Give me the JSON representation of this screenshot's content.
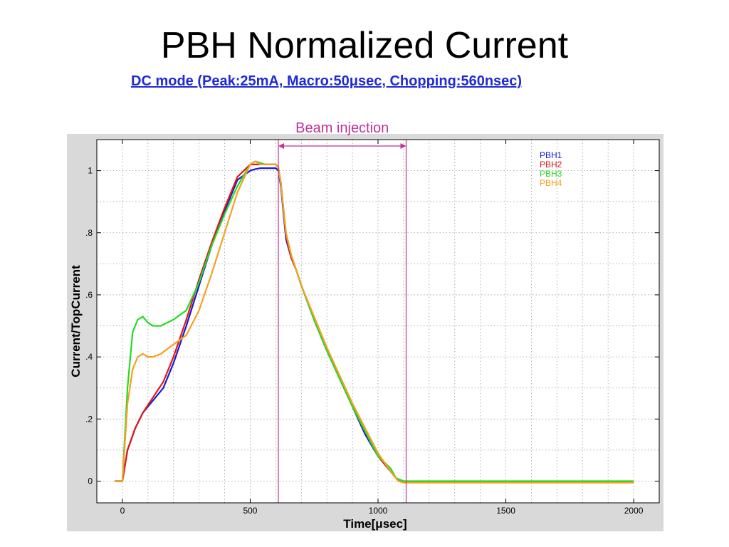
{
  "slide": {
    "title": "PBH Normalized Current",
    "subtitle": "DC mode (Peak:25mA, Macro:50μsec, Chopping:560nsec)"
  },
  "chart_data": {
    "type": "line",
    "title": "",
    "xlabel": "Time[μsec]",
    "ylabel": "Current/TopCurrent",
    "xlim": [
      -100,
      2100
    ],
    "ylim": [
      -0.07,
      1.1
    ],
    "grid": true,
    "legend_position": "top-right",
    "x_ticks": [
      {
        "value": 0,
        "label": "0"
      },
      {
        "value": 500,
        "label": "500"
      },
      {
        "value": 1000,
        "label": "1000"
      },
      {
        "value": 1500,
        "label": "1500"
      },
      {
        "value": 2000,
        "label": "2000"
      }
    ],
    "y_ticks": [
      {
        "value": 0,
        "label": "0"
      },
      {
        "value": 0.2,
        "label": ".2"
      },
      {
        "value": 0.4,
        "label": ".4"
      },
      {
        "value": 0.6,
        "label": ".6"
      },
      {
        "value": 0.8,
        "label": ".8"
      },
      {
        "value": 1,
        "label": "1"
      }
    ],
    "annotation": {
      "label": "Beam injection",
      "x_start": 610,
      "x_end": 1110,
      "color": "#c0329a"
    },
    "series": [
      {
        "name": "PBH1",
        "color": "#1a1ad6",
        "x": [
          -30,
          0,
          20,
          50,
          80,
          120,
          160,
          200,
          250,
          300,
          350,
          400,
          450,
          500,
          520,
          540,
          560,
          580,
          600,
          610,
          620,
          640,
          660,
          680,
          700,
          750,
          800,
          850,
          900,
          950,
          1000,
          1050,
          1080,
          1100,
          1200,
          1400,
          1600,
          1800,
          2000
        ],
        "y": [
          0,
          0,
          0.1,
          0.17,
          0.22,
          0.26,
          0.3,
          0.38,
          0.5,
          0.63,
          0.76,
          0.87,
          0.97,
          1.0,
          1.005,
          1.008,
          1.008,
          1.008,
          1.008,
          1.0,
          0.95,
          0.78,
          0.72,
          0.68,
          0.63,
          0.52,
          0.42,
          0.33,
          0.24,
          0.15,
          0.08,
          0.03,
          0.0,
          -0.003,
          -0.003,
          -0.003,
          -0.003,
          -0.003,
          -0.003
        ]
      },
      {
        "name": "PBH2",
        "color": "#e01818",
        "x": [
          -30,
          0,
          20,
          50,
          80,
          120,
          160,
          200,
          250,
          300,
          350,
          400,
          450,
          500,
          520,
          540,
          560,
          580,
          600,
          610,
          620,
          640,
          660,
          680,
          700,
          750,
          800,
          850,
          900,
          950,
          1000,
          1050,
          1080,
          1100,
          1200,
          1400,
          1600,
          1800,
          2000
        ],
        "y": [
          0,
          0,
          0.1,
          0.17,
          0.22,
          0.27,
          0.32,
          0.4,
          0.52,
          0.65,
          0.77,
          0.88,
          0.98,
          1.02,
          1.02,
          1.02,
          1.02,
          1.02,
          1.02,
          1.01,
          0.96,
          0.79,
          0.72,
          0.68,
          0.63,
          0.52,
          0.42,
          0.33,
          0.24,
          0.16,
          0.08,
          0.03,
          0.0,
          -0.003,
          -0.003,
          -0.003,
          -0.003,
          -0.003,
          -0.003
        ]
      },
      {
        "name": "PBH3",
        "color": "#22dd22",
        "x": [
          -30,
          0,
          20,
          40,
          60,
          80,
          100,
          120,
          150,
          200,
          250,
          300,
          350,
          400,
          450,
          500,
          520,
          540,
          560,
          580,
          600,
          610,
          620,
          640,
          660,
          680,
          700,
          750,
          800,
          850,
          900,
          950,
          1000,
          1050,
          1070,
          1100,
          1200,
          1400,
          1600,
          1800,
          2000
        ],
        "y": [
          0,
          0,
          0.3,
          0.48,
          0.52,
          0.53,
          0.51,
          0.5,
          0.5,
          0.52,
          0.55,
          0.64,
          0.76,
          0.86,
          0.95,
          1.02,
          1.03,
          1.025,
          1.02,
          1.02,
          1.02,
          1.01,
          0.96,
          0.8,
          0.73,
          0.68,
          0.63,
          0.52,
          0.42,
          0.33,
          0.24,
          0.16,
          0.08,
          0.04,
          0.01,
          0.0,
          0.0,
          0.0,
          0.0,
          0.0,
          0.0
        ]
      },
      {
        "name": "PBH4",
        "color": "#f5a020",
        "x": [
          -30,
          0,
          20,
          40,
          60,
          80,
          100,
          120,
          150,
          200,
          250,
          300,
          350,
          400,
          450,
          500,
          520,
          540,
          560,
          580,
          600,
          610,
          620,
          640,
          660,
          680,
          700,
          750,
          800,
          850,
          900,
          950,
          1000,
          1050,
          1080,
          1100,
          1200,
          1400,
          1600,
          1800,
          2000
        ],
        "y": [
          0,
          0,
          0.25,
          0.36,
          0.4,
          0.41,
          0.4,
          0.4,
          0.41,
          0.44,
          0.47,
          0.55,
          0.67,
          0.8,
          0.93,
          1.02,
          1.03,
          1.02,
          1.02,
          1.02,
          1.02,
          1.01,
          0.96,
          0.8,
          0.73,
          0.68,
          0.63,
          0.53,
          0.43,
          0.34,
          0.25,
          0.17,
          0.09,
          0.03,
          0.0,
          -0.005,
          -0.005,
          -0.005,
          -0.005,
          -0.005,
          -0.005
        ]
      }
    ]
  }
}
